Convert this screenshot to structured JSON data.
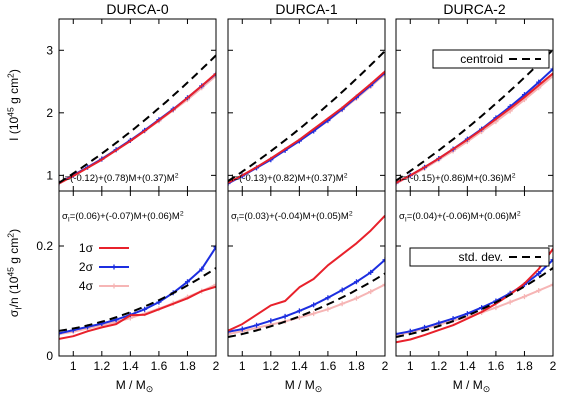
{
  "figure": {
    "panel_titles": [
      "DURCA-0",
      "DURCA-1",
      "DURCA-2"
    ],
    "xlabel": "M / M",
    "xlabel_sub": "⊙",
    "ylabel_top": "I (10^{45} g cm^{2})",
    "ylabel_bottom": "σ_{I}/n (10^{45} g cm^{2})"
  },
  "formulas_top": [
    "I=(-0.12)+(0.78)M+(0.37)M^{2}",
    "I=(-0.13)+(0.82)M+(0.37)M^{2}",
    "I=(-0.15)+(0.86)M+(0.36)M^{2}"
  ],
  "formulas_bottom": [
    "σ_{I}=(0.06)+(-0.07)M+(0.06)M^{2}",
    "σ_{I}=(0.03)+(-0.04)M+(0.05)M^{2}",
    "σ_{I}=(0.04)+(-0.06)M+(0.06)M^{2}"
  ],
  "legends": {
    "top": {
      "label": "centroid",
      "panel": 2
    },
    "bottom_sigma": {
      "labels": [
        "1σ",
        "2σ",
        "4σ"
      ],
      "panel": 0
    },
    "bottom_std": {
      "label": "std. dev.",
      "panel": 2
    }
  },
  "colors": {
    "one_sigma": "#e8212b",
    "two_sigma": "#1c2ee0",
    "four_sigma": "#f6b5b5",
    "fit": "#000000"
  },
  "chart_data": [
    {
      "type": "line",
      "row": "top",
      "panel": 0,
      "xlim": [
        0.9,
        2.0
      ],
      "ylim": [
        0.75,
        3.5
      ],
      "xticks": [
        1,
        1.2,
        1.4,
        1.6,
        1.8,
        2
      ],
      "yticks": [
        1,
        2,
        3
      ],
      "x": [
        0.9,
        1.0,
        1.1,
        1.2,
        1.3,
        1.4,
        1.5,
        1.6,
        1.7,
        1.8,
        1.9,
        2.0
      ],
      "series": [
        {
          "key": "4s",
          "values": [
            0.89,
            1.01,
            1.13,
            1.27,
            1.41,
            1.56,
            1.71,
            1.87,
            2.04,
            2.21,
            2.4,
            2.59
          ]
        },
        {
          "key": "2s",
          "values": [
            0.88,
            1.0,
            1.13,
            1.26,
            1.41,
            1.56,
            1.72,
            1.89,
            2.06,
            2.24,
            2.43,
            2.62
          ]
        },
        {
          "key": "1s",
          "values": [
            0.87,
            0.99,
            1.12,
            1.25,
            1.4,
            1.55,
            1.71,
            1.88,
            2.05,
            2.24,
            2.43,
            2.63
          ]
        }
      ],
      "fit": {
        "a": -0.12,
        "b": 0.78,
        "c": 0.37
      }
    },
    {
      "type": "line",
      "row": "top",
      "panel": 1,
      "xlim": [
        0.9,
        2.0
      ],
      "ylim": [
        0.75,
        3.5
      ],
      "xticks": [
        1,
        1.2,
        1.4,
        1.6,
        1.8,
        2
      ],
      "yticks": [
        1,
        2,
        3
      ],
      "x": [
        0.9,
        1.0,
        1.1,
        1.2,
        1.3,
        1.4,
        1.5,
        1.6,
        1.7,
        1.8,
        1.9,
        2.0
      ],
      "series": [
        {
          "key": "4s",
          "values": [
            0.88,
            1.0,
            1.12,
            1.26,
            1.4,
            1.55,
            1.71,
            1.87,
            2.05,
            2.23,
            2.42,
            2.62
          ]
        },
        {
          "key": "2s",
          "values": [
            0.87,
            0.99,
            1.12,
            1.25,
            1.4,
            1.55,
            1.71,
            1.88,
            2.06,
            2.25,
            2.44,
            2.64
          ]
        },
        {
          "key": "1s",
          "values": [
            0.88,
            1.0,
            1.13,
            1.27,
            1.42,
            1.57,
            1.74,
            1.91,
            2.08,
            2.27,
            2.46,
            2.66
          ]
        }
      ],
      "fit": {
        "a": -0.13,
        "b": 0.82,
        "c": 0.37
      }
    },
    {
      "type": "line",
      "row": "top",
      "panel": 2,
      "xlim": [
        0.9,
        2.0
      ],
      "ylim": [
        0.75,
        3.5
      ],
      "xticks": [
        1,
        1.2,
        1.4,
        1.6,
        1.8,
        2
      ],
      "yticks": [
        1,
        2,
        3
      ],
      "x": [
        0.9,
        1.0,
        1.1,
        1.2,
        1.3,
        1.4,
        1.5,
        1.6,
        1.7,
        1.8,
        1.9,
        2.0
      ],
      "series": [
        {
          "key": "4s",
          "values": [
            0.87,
            0.99,
            1.11,
            1.25,
            1.39,
            1.54,
            1.7,
            1.86,
            2.03,
            2.21,
            2.4,
            2.59
          ]
        },
        {
          "key": "2s",
          "values": [
            0.88,
            1.0,
            1.13,
            1.27,
            1.42,
            1.58,
            1.74,
            1.92,
            2.1,
            2.29,
            2.49,
            2.7
          ]
        },
        {
          "key": "1s",
          "values": [
            0.88,
            1.0,
            1.13,
            1.27,
            1.42,
            1.57,
            1.73,
            1.9,
            2.07,
            2.25,
            2.44,
            2.63
          ]
        }
      ],
      "fit": {
        "a": -0.15,
        "b": 0.86,
        "c": 0.36
      }
    },
    {
      "type": "line",
      "row": "bottom",
      "panel": 0,
      "xlim": [
        0.9,
        2.0
      ],
      "ylim": [
        0.0,
        0.3
      ],
      "xticks": [
        1,
        1.2,
        1.4,
        1.6,
        1.8,
        2
      ],
      "yticks": [
        0,
        0.2
      ],
      "x": [
        0.9,
        1.0,
        1.1,
        1.2,
        1.3,
        1.4,
        1.5,
        1.6,
        1.7,
        1.8,
        1.9,
        2.0
      ],
      "series": [
        {
          "key": "4s",
          "values": [
            0.04,
            0.044,
            0.05,
            0.056,
            0.062,
            0.069,
            0.077,
            0.086,
            0.096,
            0.107,
            0.118,
            0.13
          ]
        },
        {
          "key": "2s",
          "values": [
            0.041,
            0.047,
            0.053,
            0.059,
            0.066,
            0.075,
            0.085,
            0.098,
            0.115,
            0.135,
            0.158,
            0.198
          ]
        },
        {
          "key": "1s",
          "values": [
            0.031,
            0.036,
            0.045,
            0.052,
            0.058,
            0.074,
            0.075,
            0.085,
            0.095,
            0.105,
            0.118,
            0.126
          ]
        }
      ],
      "fit": {
        "a": 0.06,
        "b": -0.07,
        "c": 0.06
      }
    },
    {
      "type": "line",
      "row": "bottom",
      "panel": 1,
      "xlim": [
        0.9,
        2.0
      ],
      "ylim": [
        0.0,
        0.3
      ],
      "xticks": [
        1,
        1.2,
        1.4,
        1.6,
        1.8,
        2
      ],
      "yticks": [
        0,
        0.2
      ],
      "x": [
        0.9,
        1.0,
        1.1,
        1.2,
        1.3,
        1.4,
        1.5,
        1.6,
        1.7,
        1.8,
        1.9,
        2.0
      ],
      "series": [
        {
          "key": "4s",
          "values": [
            0.04,
            0.045,
            0.051,
            0.057,
            0.063,
            0.07,
            0.077,
            0.085,
            0.095,
            0.105,
            0.117,
            0.13
          ]
        },
        {
          "key": "2s",
          "values": [
            0.044,
            0.049,
            0.056,
            0.064,
            0.072,
            0.082,
            0.093,
            0.106,
            0.12,
            0.135,
            0.152,
            0.175
          ]
        },
        {
          "key": "1s",
          "values": [
            0.046,
            0.058,
            0.075,
            0.092,
            0.1,
            0.125,
            0.14,
            0.165,
            0.185,
            0.205,
            0.228,
            0.255
          ]
        }
      ],
      "fit": {
        "a": 0.03,
        "b": -0.04,
        "c": 0.05
      }
    },
    {
      "type": "line",
      "row": "bottom",
      "panel": 2,
      "xlim": [
        0.9,
        2.0
      ],
      "ylim": [
        0.0,
        0.3
      ],
      "xticks": [
        1,
        1.2,
        1.4,
        1.6,
        1.8,
        2
      ],
      "yticks": [
        0,
        0.2
      ],
      "x": [
        0.9,
        1.0,
        1.1,
        1.2,
        1.3,
        1.4,
        1.5,
        1.6,
        1.7,
        1.8,
        1.9,
        2.0
      ],
      "series": [
        {
          "key": "4s",
          "values": [
            0.038,
            0.043,
            0.05,
            0.057,
            0.064,
            0.071,
            0.079,
            0.088,
            0.098,
            0.108,
            0.119,
            0.13
          ]
        },
        {
          "key": "2s",
          "values": [
            0.04,
            0.045,
            0.052,
            0.06,
            0.068,
            0.077,
            0.088,
            0.1,
            0.114,
            0.13,
            0.15,
            0.175
          ]
        },
        {
          "key": "1s",
          "values": [
            0.025,
            0.03,
            0.038,
            0.047,
            0.056,
            0.068,
            0.08,
            0.095,
            0.112,
            0.132,
            0.158,
            0.195
          ]
        }
      ],
      "fit": {
        "a": 0.04,
        "b": -0.06,
        "c": 0.06
      }
    }
  ]
}
